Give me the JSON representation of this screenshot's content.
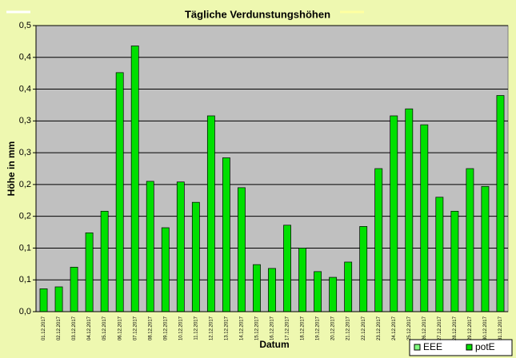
{
  "chart_data": {
    "type": "bar",
    "title": "Tägliche Verdunstungshöhen",
    "x_label": "Datum",
    "y_label": "Höhe in mm",
    "categories": [
      "01.12.2017",
      "02.12.2017",
      "03.12.2017",
      "04.12.2017",
      "05.12.2017",
      "06.12.2017",
      "07.12.2017",
      "08.12.2017",
      "09.12.2017",
      "10.12.2017",
      "11.12.2017",
      "12.12.2017",
      "13.12.2017",
      "14.12.2017",
      "15.12.2017",
      "16.12.2017",
      "17.12.2017",
      "18.12.2017",
      "19.12.2017",
      "20.12.2017",
      "21.12.2017",
      "22.12.2017",
      "23.12.2017",
      "24.12.2017",
      "25.12.2017",
      "26.12.2017",
      "27.12.2017",
      "28.12.2017",
      "29.12.2017",
      "30.12.2017",
      "31.12.2017"
    ],
    "values": [
      0.036,
      0.039,
      0.07,
      0.124,
      0.158,
      0.376,
      0.418,
      0.205,
      0.132,
      0.204,
      0.172,
      0.308,
      0.242,
      0.195,
      0.074,
      0.068,
      0.136,
      0.1,
      0.063,
      0.054,
      0.078,
      0.134,
      0.225,
      0.308,
      0.319,
      0.294,
      0.18,
      0.158,
      0.225,
      0.197,
      0.34
    ],
    "color": "#00e000",
    "legend": [
      {
        "name": "EEE",
        "color": "#80ff80"
      },
      {
        "name": "potE",
        "color": "#00e000"
      }
    ],
    "ylim": [
      0,
      0.45
    ],
    "yticks": [
      {
        "value": 0,
        "label": "0,0"
      },
      {
        "value": 0.05,
        "label": "0,1"
      },
      {
        "value": 0.1,
        "label": "0,1"
      },
      {
        "value": 0.15,
        "label": "0,2"
      },
      {
        "value": 0.2,
        "label": "0,2"
      },
      {
        "value": 0.25,
        "label": "0,3"
      },
      {
        "value": 0.3,
        "label": "0,3"
      },
      {
        "value": 0.35,
        "label": "0,4"
      },
      {
        "value": 0.4,
        "label": "0,4"
      },
      {
        "value": 0.45,
        "label": "0,5"
      }
    ],
    "grid": true
  }
}
